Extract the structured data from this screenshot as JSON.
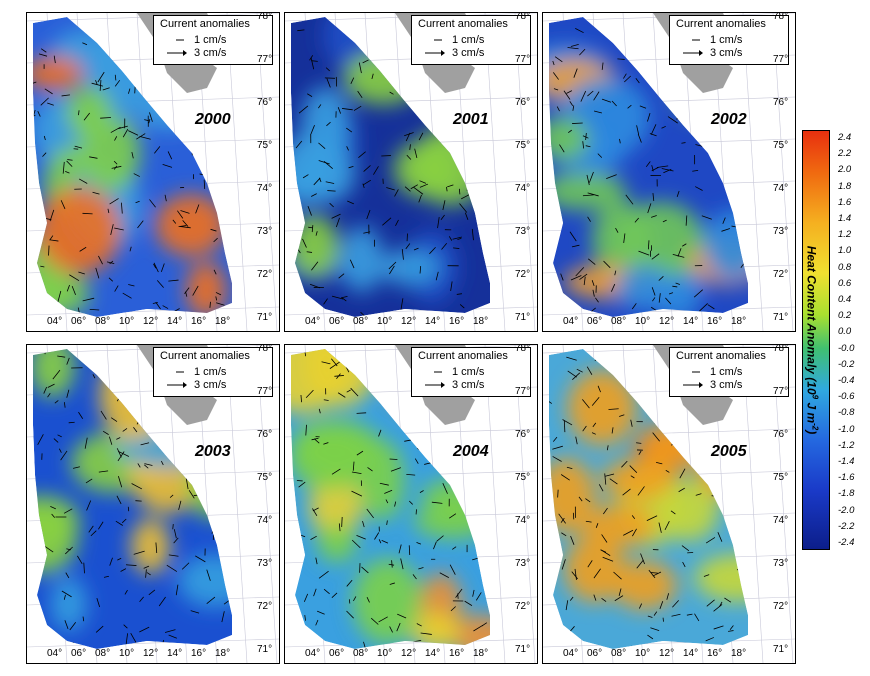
{
  "panels": [
    {
      "year": "2000",
      "palette": [
        "#2a5fd8",
        "#3a9ee0",
        "#7fd04a",
        "#f07020"
      ]
    },
    {
      "year": "2001",
      "palette": [
        "#15309a",
        "#2050c8",
        "#3a9ee0",
        "#8ad040"
      ]
    },
    {
      "year": "2002",
      "palette": [
        "#1f48c4",
        "#2f8ce0",
        "#70c858",
        "#f0a030"
      ]
    },
    {
      "year": "2003",
      "palette": [
        "#1a50d0",
        "#35a0e0",
        "#8ad040",
        "#f0c030"
      ]
    },
    {
      "year": "2004",
      "palette": [
        "#3aa0e0",
        "#7cd048",
        "#e8d030",
        "#f09030"
      ]
    },
    {
      "year": "2005",
      "palette": [
        "#4aa8d8",
        "#c8d838",
        "#f0a020",
        "#e83a10"
      ]
    }
  ],
  "legend": {
    "title": "Current anomalies",
    "row1": "1  cm/s",
    "row2": "3  cm/s"
  },
  "lat_labels": [
    "78°",
    "77°",
    "76°",
    "75°",
    "74°",
    "73°",
    "72°",
    "71°"
  ],
  "lon_labels": [
    "04°",
    "06°",
    "08°",
    "10°",
    "12°",
    "14°",
    "16°",
    "18°"
  ],
  "colorbar": {
    "label_prefix": "Heat Content Anomaly (10",
    "label_exp": "9",
    "label_mid": " J m",
    "label_exp2": "-2",
    "label_suffix": ")",
    "ticks": [
      "2.4",
      "2.2",
      "2.0",
      "1.8",
      "1.6",
      "1.4",
      "1.2",
      "1.0",
      "0.8",
      "0.6",
      "0.4",
      "0.2",
      "0.0",
      "-0.0",
      "-0.2",
      "-0.4",
      "-0.6",
      "-0.8",
      "-1.0",
      "-1.2",
      "-1.4",
      "-1.6",
      "-1.8",
      "-2.0",
      "-2.2",
      "-2.4"
    ],
    "colors": {
      "max": "#e8300f",
      "zero": "#40c070",
      "min": "#0c1e8a"
    }
  }
}
